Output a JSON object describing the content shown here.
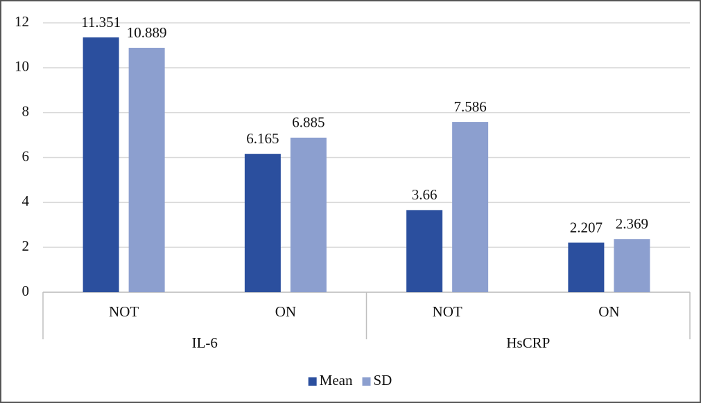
{
  "chart_data": {
    "type": "bar",
    "categories": [
      "NOT",
      "ON",
      "NOT",
      "ON"
    ],
    "groups": [
      "IL-6",
      "HsCRP"
    ],
    "series": [
      {
        "name": "Mean",
        "color": "#2b4f9e",
        "values": [
          11.351,
          6.165,
          3.66,
          2.207
        ]
      },
      {
        "name": "SD",
        "color": "#8c9fcf",
        "values": [
          10.889,
          6.885,
          7.586,
          2.369
        ]
      }
    ],
    "ylim": [
      0,
      12
    ],
    "yticks": [
      0,
      2,
      4,
      6,
      8,
      10,
      12
    ],
    "grid": true,
    "legend": "bottom"
  }
}
